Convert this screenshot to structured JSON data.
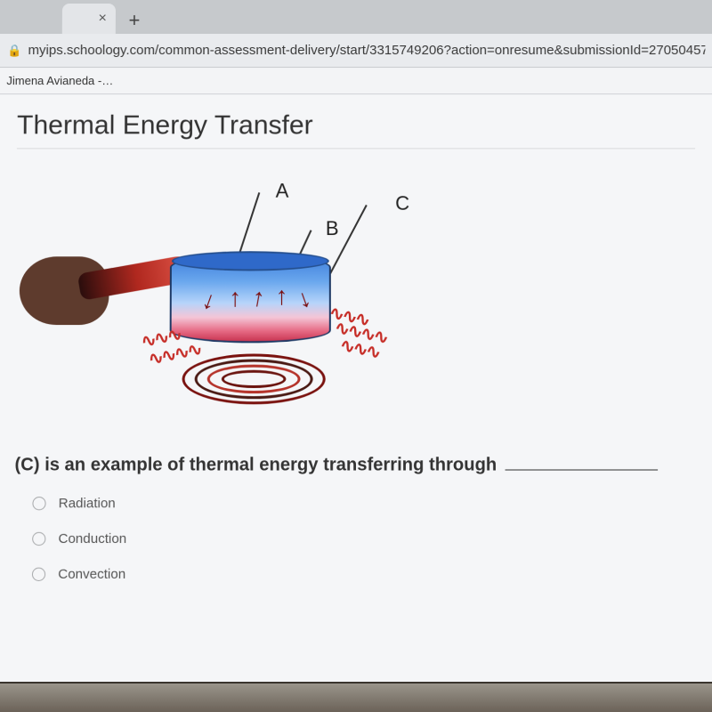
{
  "browser": {
    "tab_close_glyph": "×",
    "new_tab_glyph": "+",
    "lock_glyph": "🔒",
    "url": "myips.schoology.com/common-assessment-delivery/start/3315749206?action=onresume&submissionId=27050457",
    "bookmark": "Jimena Avianeda -…"
  },
  "page": {
    "title": "Thermal Energy Transfer",
    "diagram": {
      "type": "labeled-diagram",
      "labels": {
        "A": "A",
        "B": "B",
        "C": "C"
      },
      "label_fontsize": 22,
      "colors": {
        "hand": "#5e3b2d",
        "handle_gradient": [
          "#2a0d0c",
          "#b0281f",
          "#e2574a"
        ],
        "pot_gradient": [
          "#3e7fdc",
          "#6ba8ee",
          "#b6d4fa",
          "#f4c5d6",
          "#e66a84",
          "#c93552"
        ],
        "arrow": "#7a0f10",
        "wave": "#c62d27",
        "coil": [
          "#7a120f",
          "#4a1a14",
          "#b5332a",
          "#6b1510"
        ]
      }
    },
    "question": {
      "stem_pre": "(C) is an example of thermal energy transferring through",
      "options": [
        "Radiation",
        "Conduction",
        "Convection"
      ]
    }
  }
}
